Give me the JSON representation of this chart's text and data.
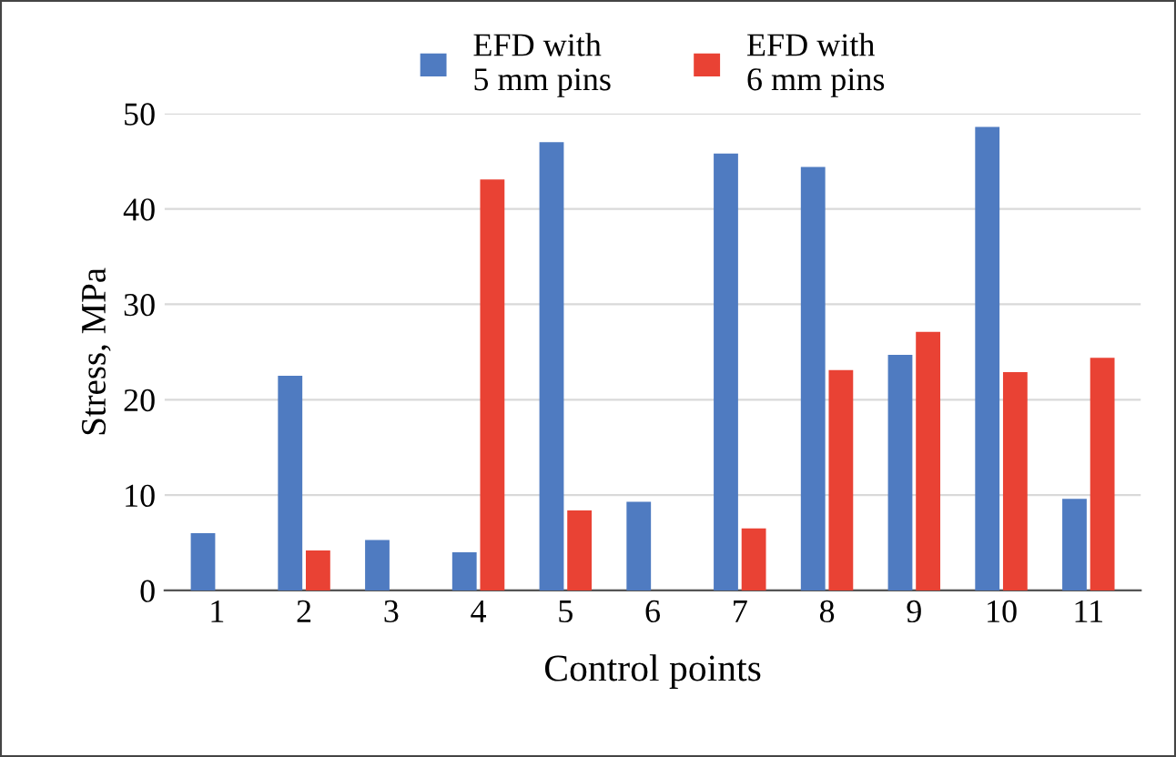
{
  "chart_data": {
    "type": "bar",
    "xlabel": "Control points",
    "ylabel": "Stress, MPa",
    "categories": [
      "1",
      "2",
      "3",
      "4",
      "5",
      "6",
      "7",
      "8",
      "9",
      "10",
      "11"
    ],
    "series": [
      {
        "name": "EFD with\n5 mm pins",
        "color": "#4f7bc1",
        "values": [
          6.0,
          22.5,
          5.3,
          4.0,
          47.0,
          9.3,
          45.8,
          44.4,
          24.7,
          48.6,
          9.6
        ]
      },
      {
        "name": "EFD with\n6 mm pins",
        "color": "#e94234",
        "values": [
          null,
          4.2,
          null,
          43.1,
          8.4,
          null,
          6.5,
          23.1,
          27.1,
          22.9,
          24.4
        ]
      }
    ],
    "ylim": [
      0,
      50
    ],
    "yticks": [
      0,
      10,
      20,
      30,
      40,
      50
    ],
    "grid": "y",
    "legend": "top"
  }
}
